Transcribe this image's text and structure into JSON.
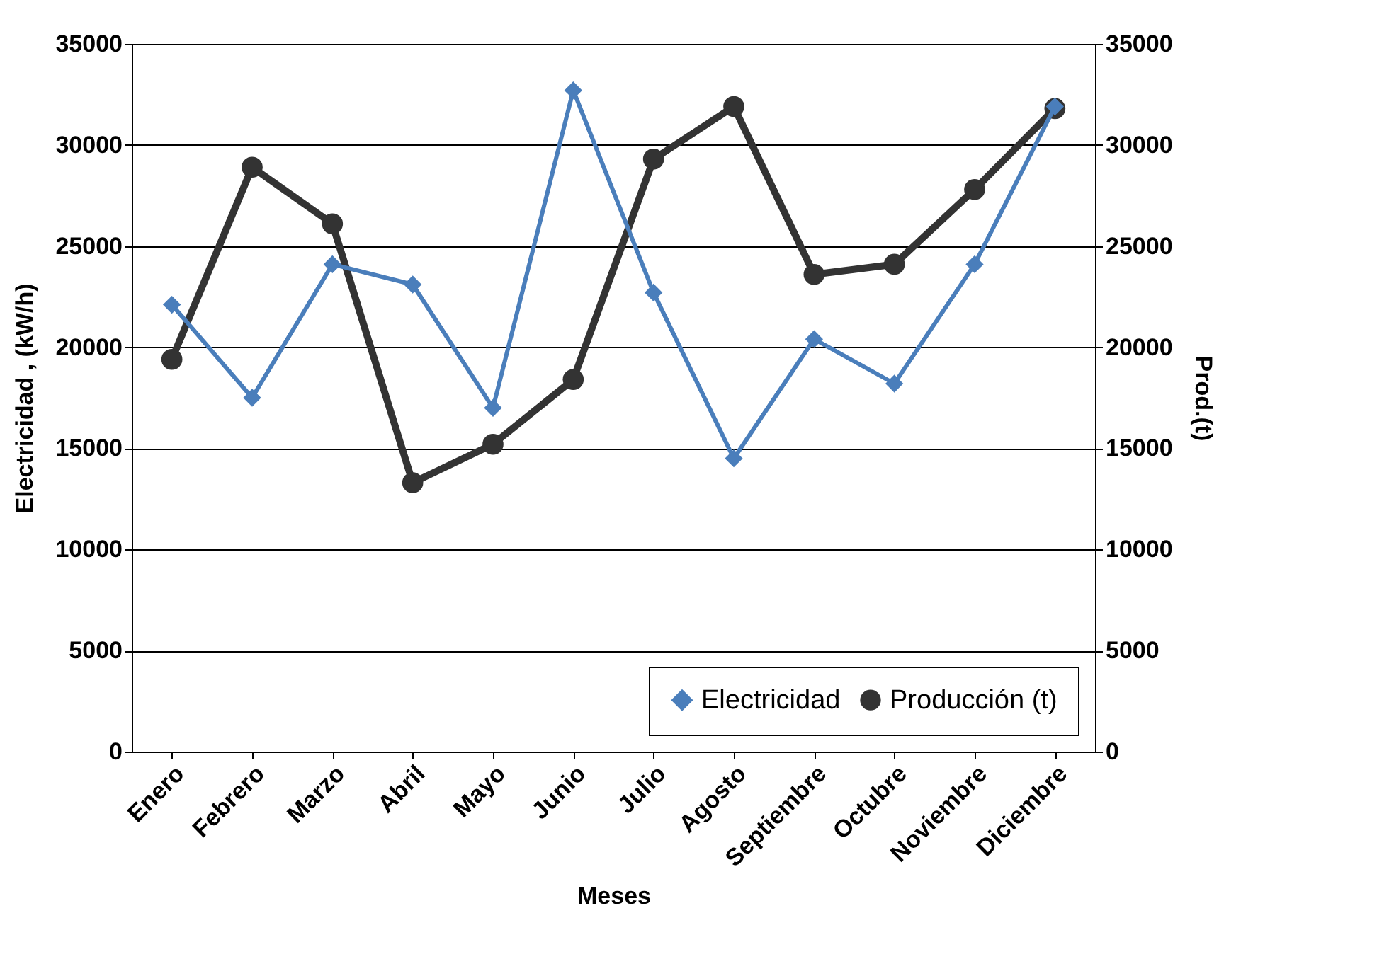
{
  "chart_data": {
    "type": "line",
    "xlabel": "Meses",
    "ylabel": "Electricidad , (kW/h)",
    "y2label": "Prod.(t)",
    "categories": [
      "Enero",
      "Febrero",
      "Marzo",
      "Abril",
      "Mayo",
      "Junio",
      "Julio",
      "Agosto",
      "Septiembre",
      "Octubre",
      "Noviembre",
      "Diciembre"
    ],
    "series": [
      {
        "name": "Electricidad",
        "color": "#4a7ebb",
        "marker": "diamond",
        "values": [
          22100,
          17500,
          24100,
          23100,
          17000,
          32700,
          22700,
          14500,
          20400,
          18200,
          24100,
          31900
        ]
      },
      {
        "name": "Producción (t)",
        "color": "#333333",
        "marker": "circle",
        "axis": "y2",
        "values": [
          19400,
          28900,
          26100,
          13300,
          15200,
          18400,
          29300,
          31900,
          23600,
          24100,
          27800,
          31800
        ]
      }
    ],
    "ylim": [
      0,
      35000
    ],
    "yticks": [
      0,
      5000,
      10000,
      15000,
      20000,
      25000,
      30000,
      35000
    ],
    "y2lim": [
      0,
      35000
    ],
    "y2ticks": [
      0,
      5000,
      10000,
      15000,
      20000,
      25000,
      30000,
      35000
    ],
    "grid": "y",
    "legend": "bottom right",
    "line_style": "solid"
  }
}
